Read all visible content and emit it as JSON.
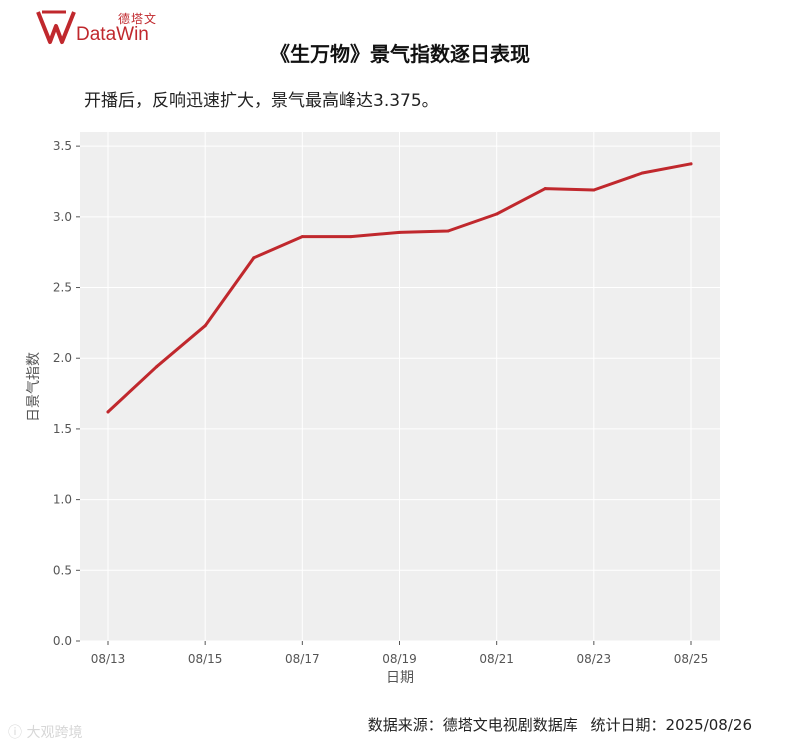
{
  "brand": {
    "name_cn": "德塔文",
    "name_en": "DataWin",
    "color": "#c0282d"
  },
  "title": "《生万物》景气指数逐日表现",
  "subtitle": "开播后，反响迅速扩大，景气最高峰达3.375。",
  "footer": {
    "source": "数据来源：德塔文电视剧数据库",
    "date": "统计日期：2025/08/26"
  },
  "watermark": "大观跨境",
  "chart_data": {
    "type": "line",
    "x": [
      "08/13",
      "08/14",
      "08/15",
      "08/16",
      "08/17",
      "08/18",
      "08/19",
      "08/20",
      "08/21",
      "08/22",
      "08/23",
      "08/24",
      "08/25"
    ],
    "x_tick_labels": [
      "08/13",
      "08/15",
      "08/17",
      "08/19",
      "08/21",
      "08/23",
      "08/25"
    ],
    "series": [
      {
        "values": [
          1.62,
          1.94,
          2.23,
          2.71,
          2.86,
          2.86,
          2.89,
          2.9,
          3.02,
          3.2,
          3.19,
          3.31,
          3.375
        ],
        "color": "#c0282d"
      }
    ],
    "xlabel": "日期",
    "ylabel": "日景气指数",
    "ylim": [
      0,
      3.6
    ],
    "y_ticks": [
      0.0,
      0.5,
      1.0,
      1.5,
      2.0,
      2.5,
      3.0,
      3.5
    ],
    "background": "#efefef",
    "grid": true
  }
}
